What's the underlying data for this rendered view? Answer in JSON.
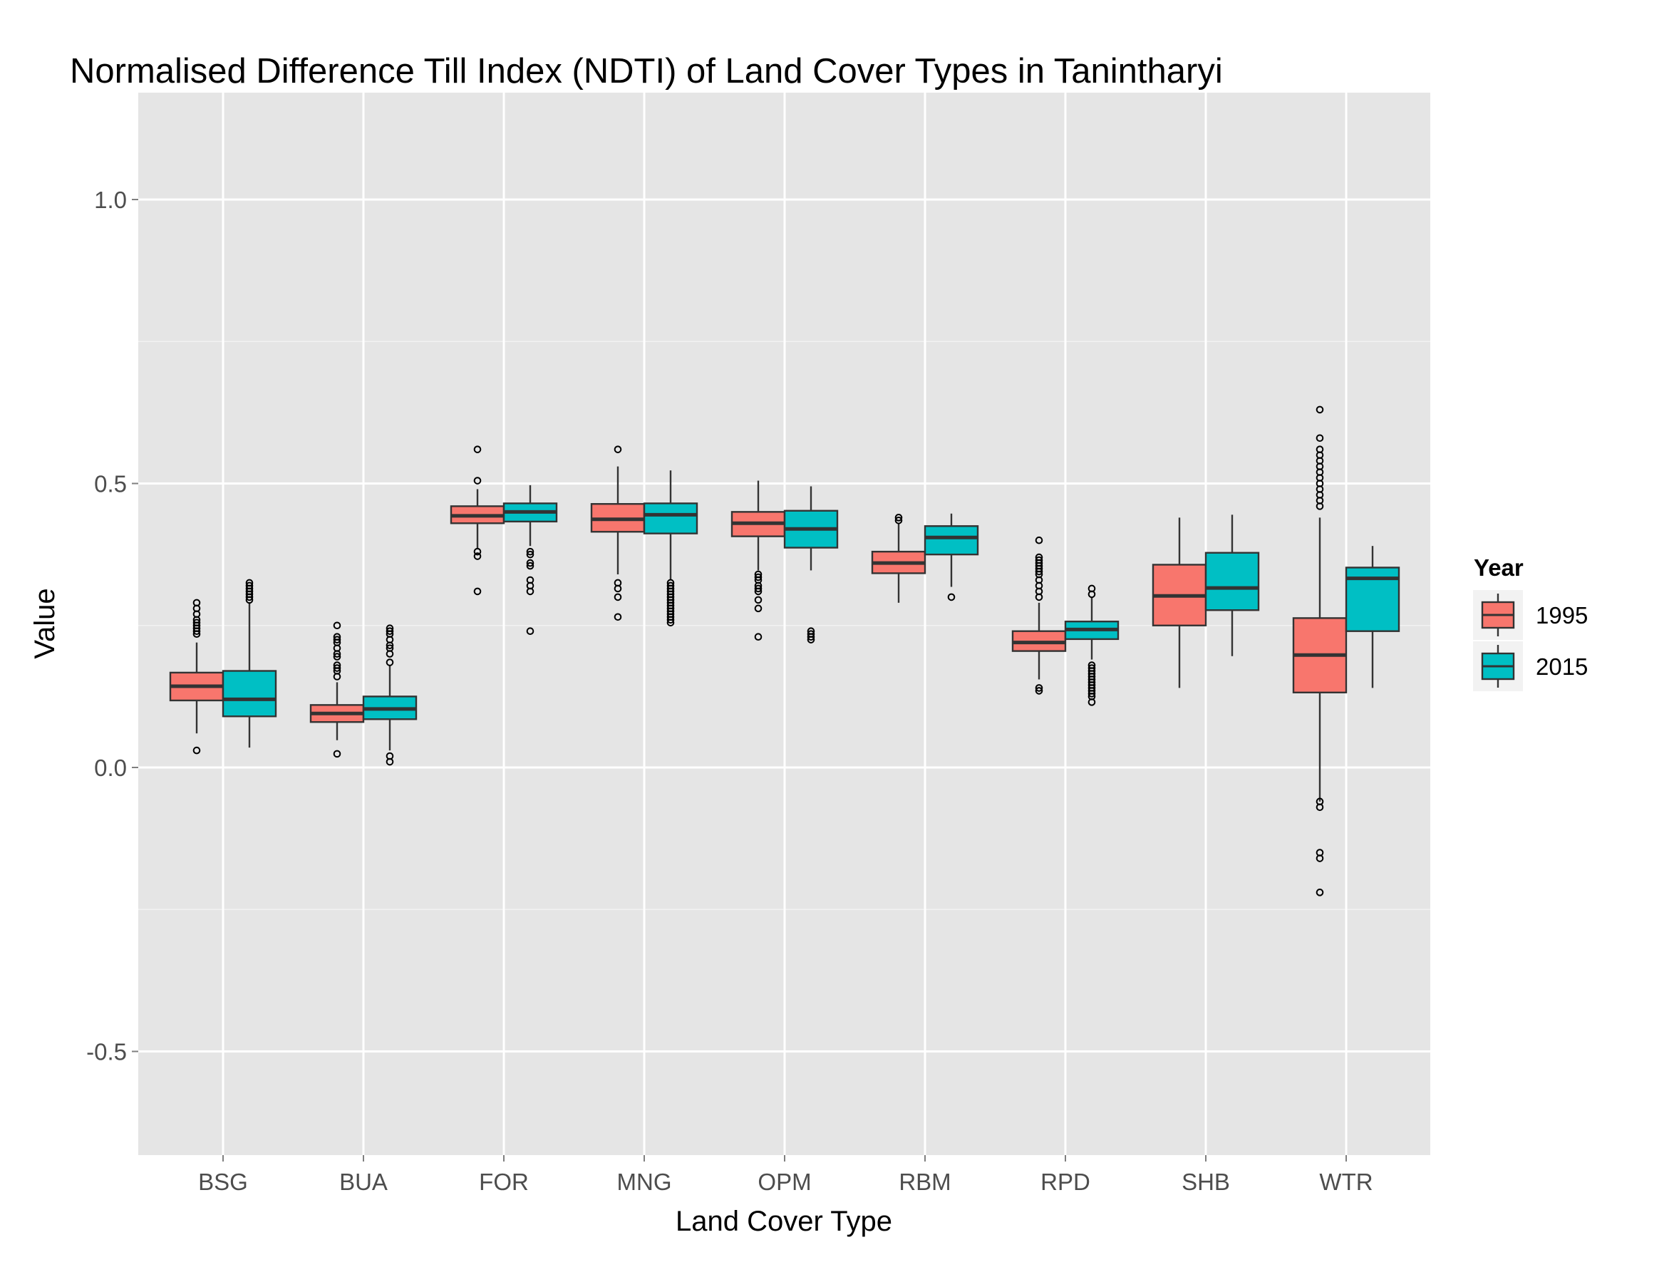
{
  "chart_data": {
    "type": "boxplot",
    "title": "Normalised Difference Till Index (NDTI) of Land Cover Types in Tanintharyi",
    "xlabel": "Land Cover Type",
    "ylabel": "Value",
    "ylim": [
      -0.68,
      1.15
    ],
    "yticks": [
      -0.5,
      0.0,
      0.5,
      1.0
    ],
    "ytick_labels": [
      "-0.5",
      "0.0",
      "0.5",
      "1.0"
    ],
    "grid": true,
    "legend": {
      "title": "Year",
      "position": "right"
    },
    "categories": [
      "BSG",
      "BUA",
      "FOR",
      "MNG",
      "OPM",
      "RBM",
      "RPD",
      "SHB",
      "WTR"
    ],
    "series": [
      {
        "name": "1995",
        "color": "#F8766D",
        "boxes": [
          {
            "whisker_low": 0.06,
            "q1": 0.118,
            "median": 0.143,
            "q3": 0.167,
            "whisker_high": 0.22,
            "outliers": [
              0.03,
              0.235,
              0.24,
              0.245,
              0.25,
              0.255,
              0.26,
              0.27,
              0.28,
              0.29
            ]
          },
          {
            "whisker_low": 0.048,
            "q1": 0.08,
            "median": 0.095,
            "q3": 0.11,
            "whisker_high": 0.15,
            "outliers": [
              0.024,
              0.16,
              0.17,
              0.175,
              0.18,
              0.195,
              0.2,
              0.21,
              0.22,
              0.225,
              0.23,
              0.25
            ]
          },
          {
            "whisker_low": 0.386,
            "q1": 0.43,
            "median": 0.443,
            "q3": 0.46,
            "whisker_high": 0.49,
            "outliers": [
              0.31,
              0.372,
              0.38,
              0.505,
              0.56
            ]
          },
          {
            "whisker_low": 0.34,
            "q1": 0.415,
            "median": 0.437,
            "q3": 0.464,
            "whisker_high": 0.53,
            "outliers": [
              0.265,
              0.3,
              0.315,
              0.325,
              0.56
            ]
          },
          {
            "whisker_low": 0.347,
            "q1": 0.407,
            "median": 0.43,
            "q3": 0.45,
            "whisker_high": 0.505,
            "outliers": [
              0.23,
              0.28,
              0.295,
              0.31,
              0.315,
              0.32,
              0.33,
              0.335,
              0.34
            ]
          },
          {
            "whisker_low": 0.29,
            "q1": 0.342,
            "median": 0.36,
            "q3": 0.38,
            "whisker_high": 0.43,
            "outliers": [
              0.435,
              0.44
            ]
          },
          {
            "whisker_low": 0.155,
            "q1": 0.205,
            "median": 0.22,
            "q3": 0.24,
            "whisker_high": 0.29,
            "outliers": [
              0.135,
              0.14,
              0.3,
              0.31,
              0.32,
              0.33,
              0.34,
              0.345,
              0.35,
              0.355,
              0.36,
              0.365,
              0.37,
              0.4
            ]
          },
          {
            "whisker_low": 0.14,
            "q1": 0.25,
            "median": 0.302,
            "q3": 0.357,
            "whisker_high": 0.44,
            "outliers": []
          },
          {
            "whisker_low": -0.06,
            "q1": 0.132,
            "median": 0.198,
            "q3": 0.263,
            "whisker_high": 0.44,
            "outliers": [
              -0.22,
              -0.16,
              -0.15,
              -0.07,
              -0.06,
              0.46,
              0.47,
              0.48,
              0.49,
              0.5,
              0.51,
              0.52,
              0.53,
              0.54,
              0.55,
              0.56,
              0.58,
              0.63
            ]
          }
        ]
      },
      {
        "name": "2015",
        "color": "#00BFC4",
        "boxes": [
          {
            "whisker_low": 0.035,
            "q1": 0.09,
            "median": 0.12,
            "q3": 0.17,
            "whisker_high": 0.29,
            "outliers": [
              0.295,
              0.3,
              0.305,
              0.31,
              0.315,
              0.32,
              0.325
            ]
          },
          {
            "whisker_low": 0.03,
            "q1": 0.085,
            "median": 0.103,
            "q3": 0.125,
            "whisker_high": 0.18,
            "outliers": [
              0.01,
              0.02,
              0.185,
              0.2,
              0.21,
              0.215,
              0.225,
              0.235,
              0.24,
              0.245
            ]
          },
          {
            "whisker_low": 0.39,
            "q1": 0.433,
            "median": 0.45,
            "q3": 0.465,
            "whisker_high": 0.497,
            "outliers": [
              0.24,
              0.31,
              0.32,
              0.33,
              0.355,
              0.36,
              0.375,
              0.38
            ]
          },
          {
            "whisker_low": 0.33,
            "q1": 0.412,
            "median": 0.445,
            "q3": 0.465,
            "whisker_high": 0.523,
            "outliers": [
              0.255,
              0.26,
              0.265,
              0.27,
              0.275,
              0.28,
              0.285,
              0.29,
              0.295,
              0.3,
              0.305,
              0.31,
              0.315,
              0.32,
              0.325
            ]
          },
          {
            "whisker_low": 0.347,
            "q1": 0.387,
            "median": 0.42,
            "q3": 0.452,
            "whisker_high": 0.495,
            "outliers": [
              0.225,
              0.23,
              0.235,
              0.24
            ]
          },
          {
            "whisker_low": 0.318,
            "q1": 0.375,
            "median": 0.405,
            "q3": 0.425,
            "whisker_high": 0.447,
            "outliers": [
              0.3
            ]
          },
          {
            "whisker_low": 0.19,
            "q1": 0.226,
            "median": 0.243,
            "q3": 0.257,
            "whisker_high": 0.3,
            "outliers": [
              0.115,
              0.125,
              0.13,
              0.135,
              0.14,
              0.145,
              0.15,
              0.155,
              0.16,
              0.165,
              0.17,
              0.175,
              0.18,
              0.305,
              0.315
            ]
          },
          {
            "whisker_low": 0.196,
            "q1": 0.277,
            "median": 0.316,
            "q3": 0.378,
            "whisker_high": 0.445,
            "outliers": []
          },
          {
            "whisker_low": 0.14,
            "q1": 0.24,
            "median": 0.333,
            "q3": 0.352,
            "whisker_high": 0.39,
            "outliers": []
          }
        ]
      }
    ]
  }
}
